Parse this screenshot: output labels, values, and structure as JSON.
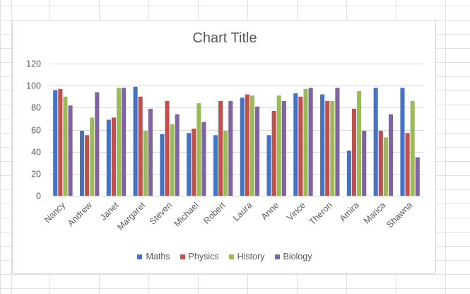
{
  "chart_data": {
    "type": "bar",
    "title": "Chart Title",
    "xlabel": "",
    "ylabel": "",
    "ylim": [
      0,
      120
    ],
    "yticks": [
      "0",
      "20",
      "40",
      "60",
      "80",
      "100",
      "120"
    ],
    "grid": true,
    "legend_position": "bottom",
    "categories": [
      "Nancy",
      "Andrew",
      "Janet",
      "Margaret",
      "Steven",
      "Michael",
      "Robert",
      "Laura",
      "Anne",
      "Vince",
      "Theron",
      "Amira",
      "Marica",
      "Shawna"
    ],
    "series": [
      {
        "name": "Maths",
        "color": "#4472C4",
        "values": [
          96,
          59,
          69,
          99,
          56,
          57,
          55,
          89,
          55,
          93,
          92,
          41,
          98,
          98
        ]
      },
      {
        "name": "Physics",
        "color": "#C0504D",
        "values": [
          97,
          55,
          71,
          90,
          86,
          61,
          86,
          92,
          77,
          90,
          86,
          79,
          59,
          57
        ]
      },
      {
        "name": "History",
        "color": "#9BBB59",
        "values": [
          90,
          71,
          98,
          59,
          65,
          84,
          59,
          91,
          91,
          97,
          86,
          95,
          53,
          86
        ]
      },
      {
        "name": "Biology",
        "color": "#8064A2",
        "values": [
          82,
          94,
          98,
          79,
          74,
          67,
          86,
          81,
          86,
          98,
          98,
          59,
          74,
          35
        ]
      }
    ]
  }
}
